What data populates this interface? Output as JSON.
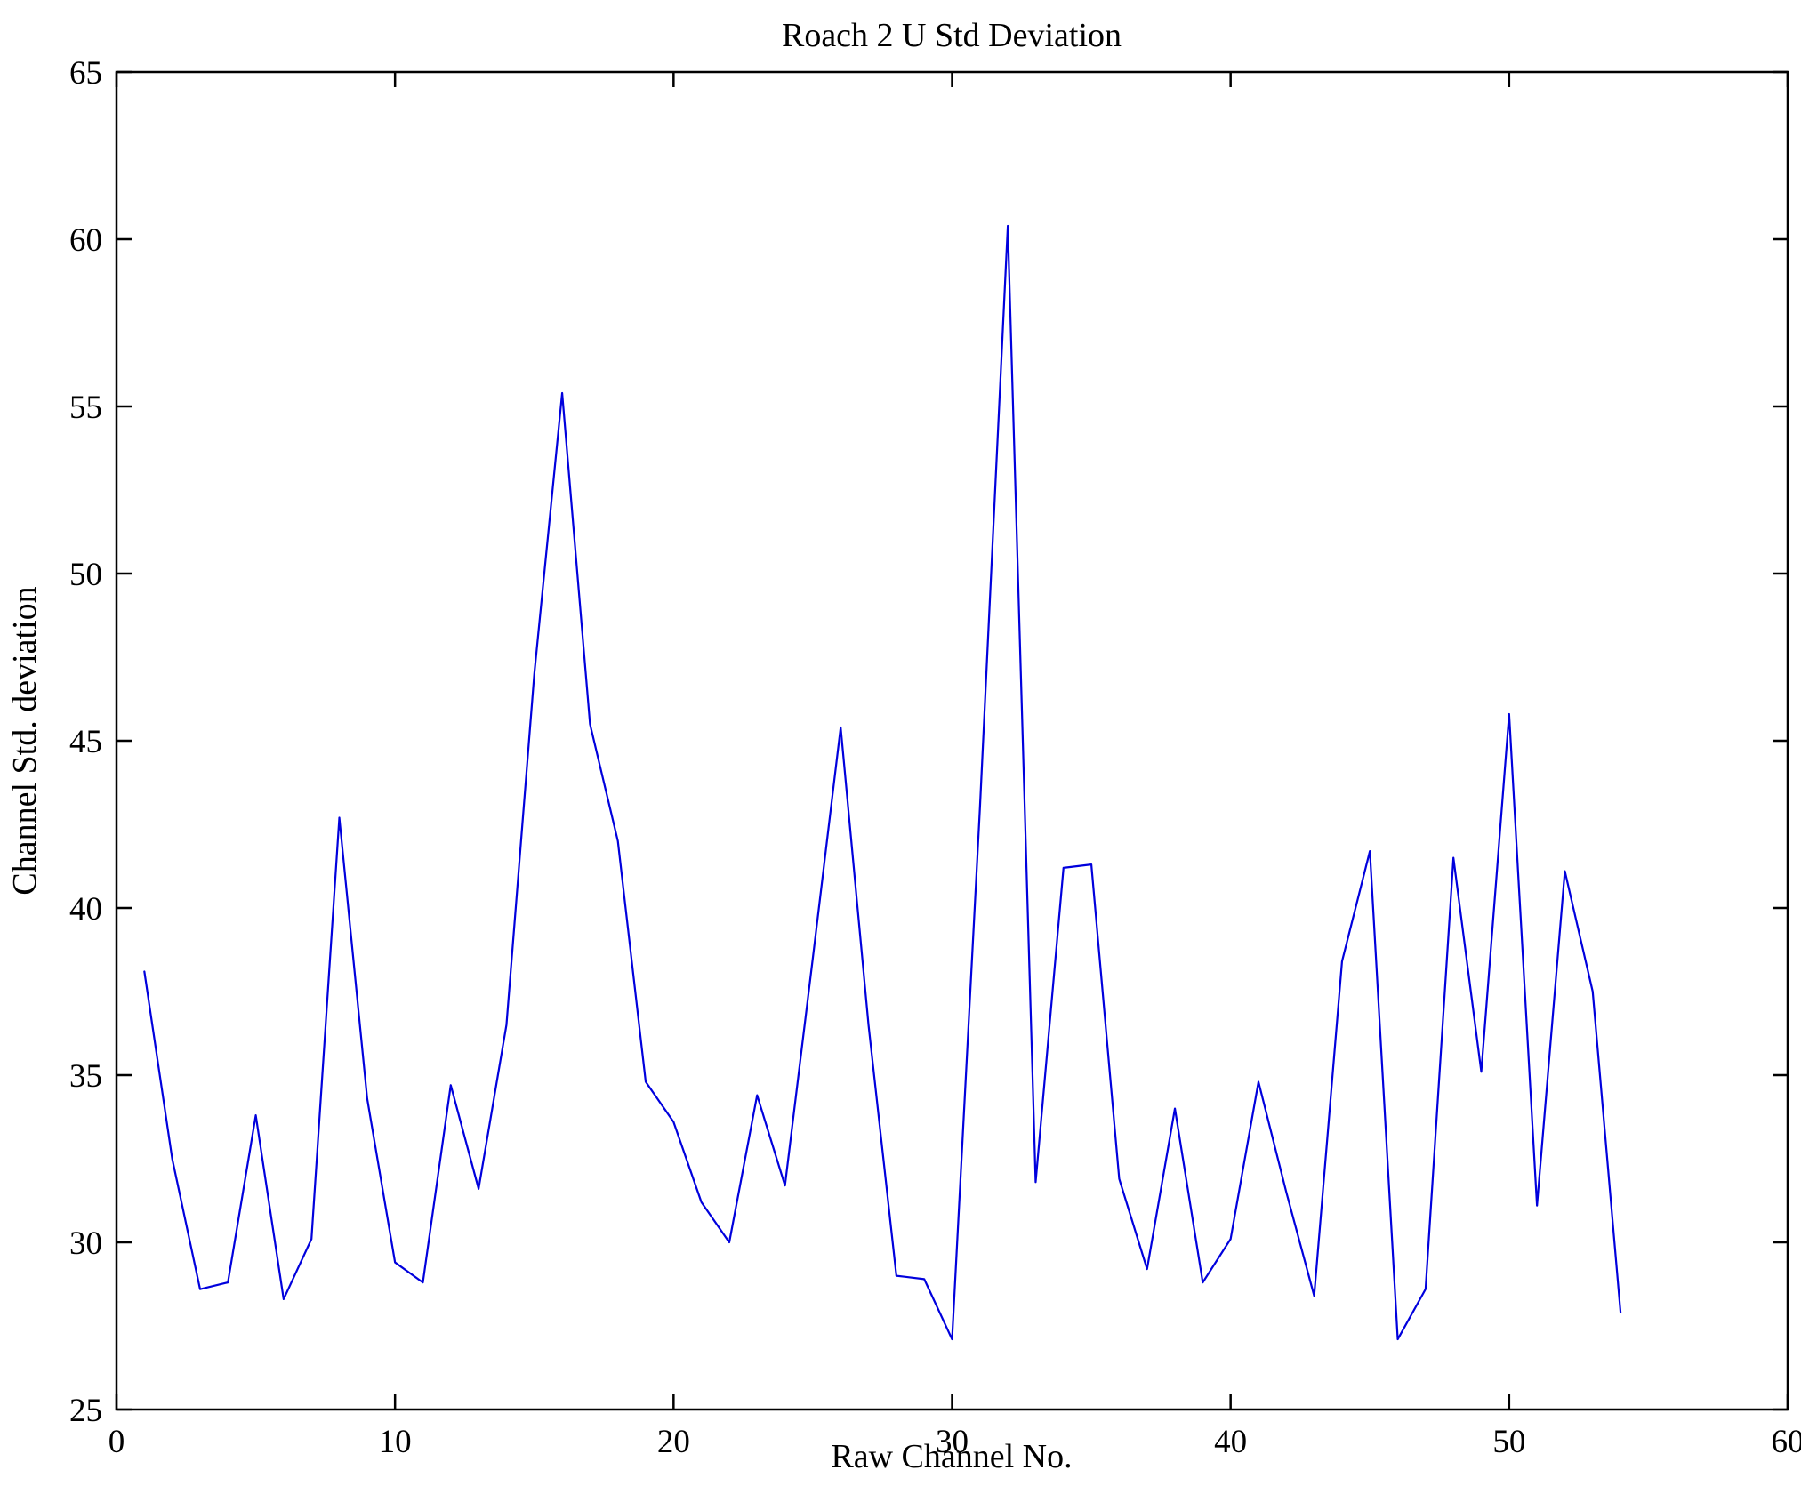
{
  "figure": {
    "background": "#ffffff"
  },
  "chart_data": {
    "type": "line",
    "title": "Roach 2 U Std Deviation",
    "xlabel": "Raw Channel No.",
    "ylabel": "Channel Std. deviation",
    "xlim": [
      0,
      60
    ],
    "ylim": [
      25,
      65
    ],
    "xticks": [
      0,
      10,
      20,
      30,
      40,
      50,
      60
    ],
    "yticks": [
      25,
      30,
      35,
      40,
      45,
      50,
      55,
      60,
      65
    ],
    "grid": false,
    "legend": "none",
    "line_color": "#0000dd",
    "axis_color": "#000000",
    "x": [
      1,
      2,
      3,
      4,
      5,
      6,
      7,
      8,
      9,
      10,
      11,
      12,
      13,
      14,
      15,
      16,
      17,
      18,
      19,
      20,
      21,
      22,
      23,
      24,
      25,
      26,
      27,
      28,
      29,
      30,
      31,
      32,
      33,
      34,
      35,
      36,
      37,
      38,
      39,
      40,
      41,
      42,
      43,
      44,
      45,
      46,
      47,
      48,
      49,
      50,
      51,
      52,
      53,
      54
    ],
    "y": [
      38.1,
      32.5,
      28.6,
      28.8,
      33.8,
      28.3,
      30.1,
      42.7,
      34.3,
      29.4,
      28.8,
      34.7,
      31.6,
      36.5,
      47.0,
      55.4,
      45.5,
      42.0,
      34.8,
      33.6,
      31.2,
      30.0,
      34.4,
      31.7,
      38.5,
      45.4,
      36.5,
      29.0,
      28.9,
      27.1,
      43.0,
      60.4,
      31.8,
      41.2,
      41.3,
      31.9,
      29.2,
      34.0,
      28.8,
      30.1,
      34.8,
      31.5,
      28.4,
      38.4,
      41.7,
      27.1,
      28.6,
      41.5,
      35.1,
      45.8,
      31.1,
      41.1,
      37.5,
      27.9
    ]
  }
}
